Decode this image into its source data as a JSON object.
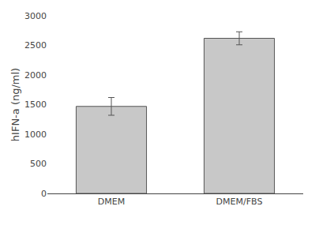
{
  "chart_data": {
    "type": "bar",
    "categories": [
      "DMEM",
      "DMEM/FBS"
    ],
    "values": [
      1470,
      2620
    ],
    "errors": [
      150,
      110
    ],
    "color": "#c8c8c8",
    "ylabel": "hIFN-a (ng/ml)",
    "ylim": [
      0,
      3000
    ],
    "yticks": [
      0,
      500,
      1000,
      1500,
      2000,
      2500,
      3000
    ],
    "grid": false
  }
}
